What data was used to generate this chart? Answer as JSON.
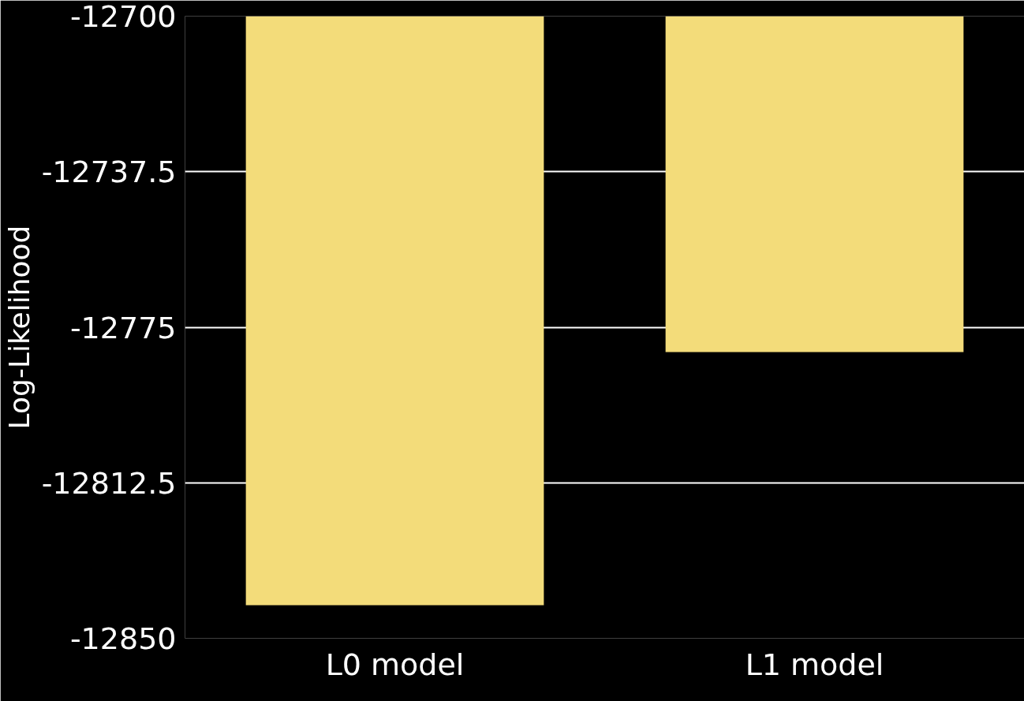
{
  "chart_data": {
    "type": "bar",
    "ylabel": "Log-Likelihood",
    "categories": [
      "L0 model",
      "L1 model"
    ],
    "values": [
      -12842,
      -12781
    ],
    "color": "#f3dc7a",
    "ylim": [
      -12850,
      -12700
    ],
    "yticks": [
      -12850,
      -12812.5,
      -12775,
      -12737.5,
      -12700
    ],
    "grid": "y"
  }
}
